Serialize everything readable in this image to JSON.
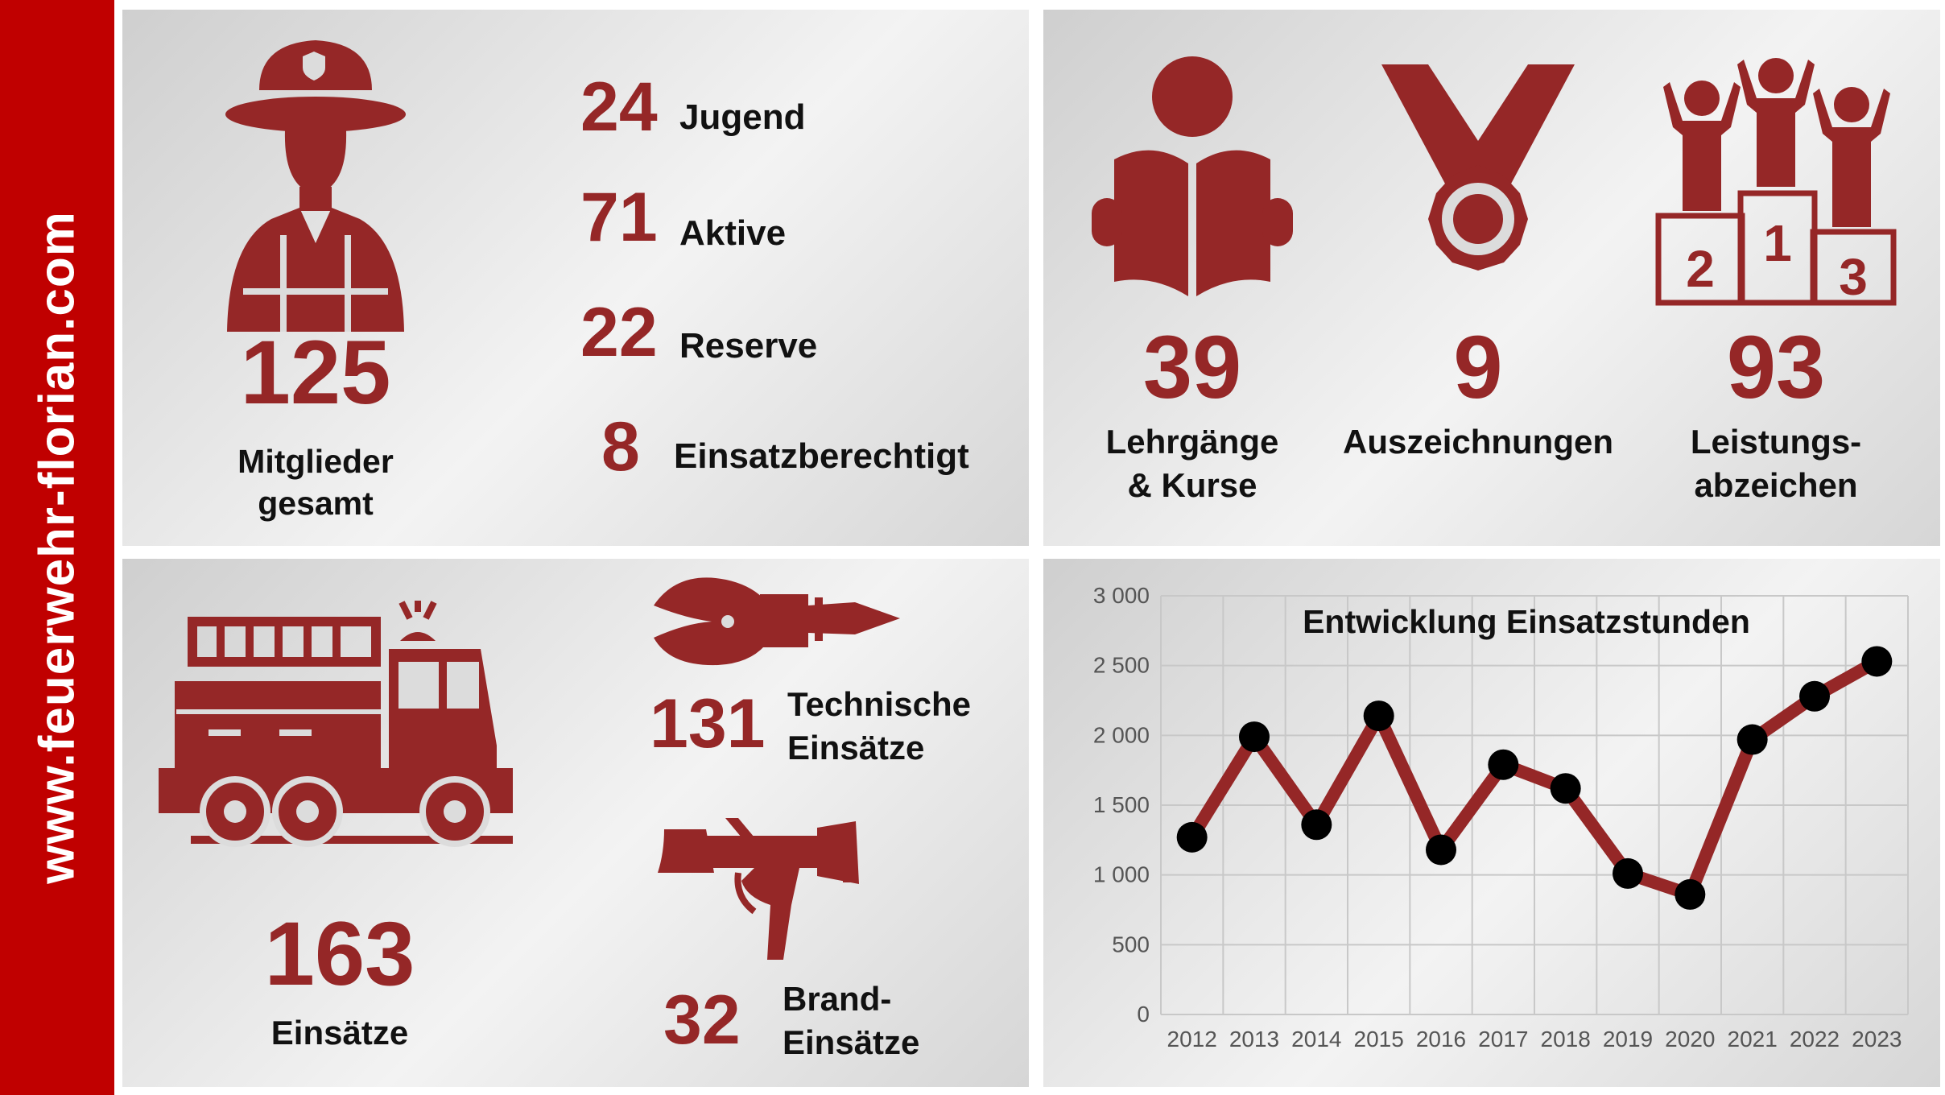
{
  "sidebar": {
    "url": "www.feuerwehr-florian.com"
  },
  "members": {
    "total": "125",
    "total_label_line1": "Mitglieder",
    "total_label_line2": "gesamt",
    "groups": [
      {
        "value": "24",
        "label": "Jugend"
      },
      {
        "value": "71",
        "label": "Aktive"
      },
      {
        "value": "22",
        "label": "Reserve"
      },
      {
        "value": "8",
        "label": "Einsatzberechtigt"
      }
    ],
    "icon": "firefighter-icon"
  },
  "achievements": [
    {
      "value": "39",
      "label_line1": "Lehrgänge",
      "label_line2": "& Kurse",
      "icon": "reading-person-icon"
    },
    {
      "value": "9",
      "label_line1": "Auszeichnungen",
      "label_line2": "",
      "icon": "medal-icon"
    },
    {
      "value": "93",
      "label_line1": "Leistungs-",
      "label_line2": "abzeichen",
      "icon": "podium-icon"
    }
  ],
  "missions": {
    "total": "163",
    "total_label": "Einsätze",
    "technical": {
      "value": "131",
      "label_line1": "Technische",
      "label_line2": "Einsätze",
      "icon": "rescue-cutter-icon"
    },
    "fire": {
      "value": "32",
      "label_line1": "Brand-",
      "label_line2": "Einsätze",
      "icon": "fire-nozzle-icon"
    },
    "icon": "fire-truck-icon"
  },
  "colors": {
    "accent": "#952727",
    "sidebar": "#c00000",
    "marker": "#000000"
  },
  "chart_data": {
    "type": "line",
    "title": "Entwicklung Einsatzstunden",
    "x": [
      "2012",
      "2013",
      "2014",
      "2015",
      "2016",
      "2017",
      "2018",
      "2019",
      "2020",
      "2021",
      "2022",
      "2023"
    ],
    "series": [
      {
        "values": [
          1270,
          1990,
          1360,
          2140,
          1180,
          1790,
          1620,
          1010,
          860,
          1970,
          2280,
          2530
        ]
      }
    ],
    "yticks": [
      "0",
      "500",
      "1 000",
      "1 500",
      "2 000",
      "2 500",
      "3 000"
    ],
    "ylim": [
      0,
      3000
    ],
    "grid": true,
    "legend": "none"
  }
}
